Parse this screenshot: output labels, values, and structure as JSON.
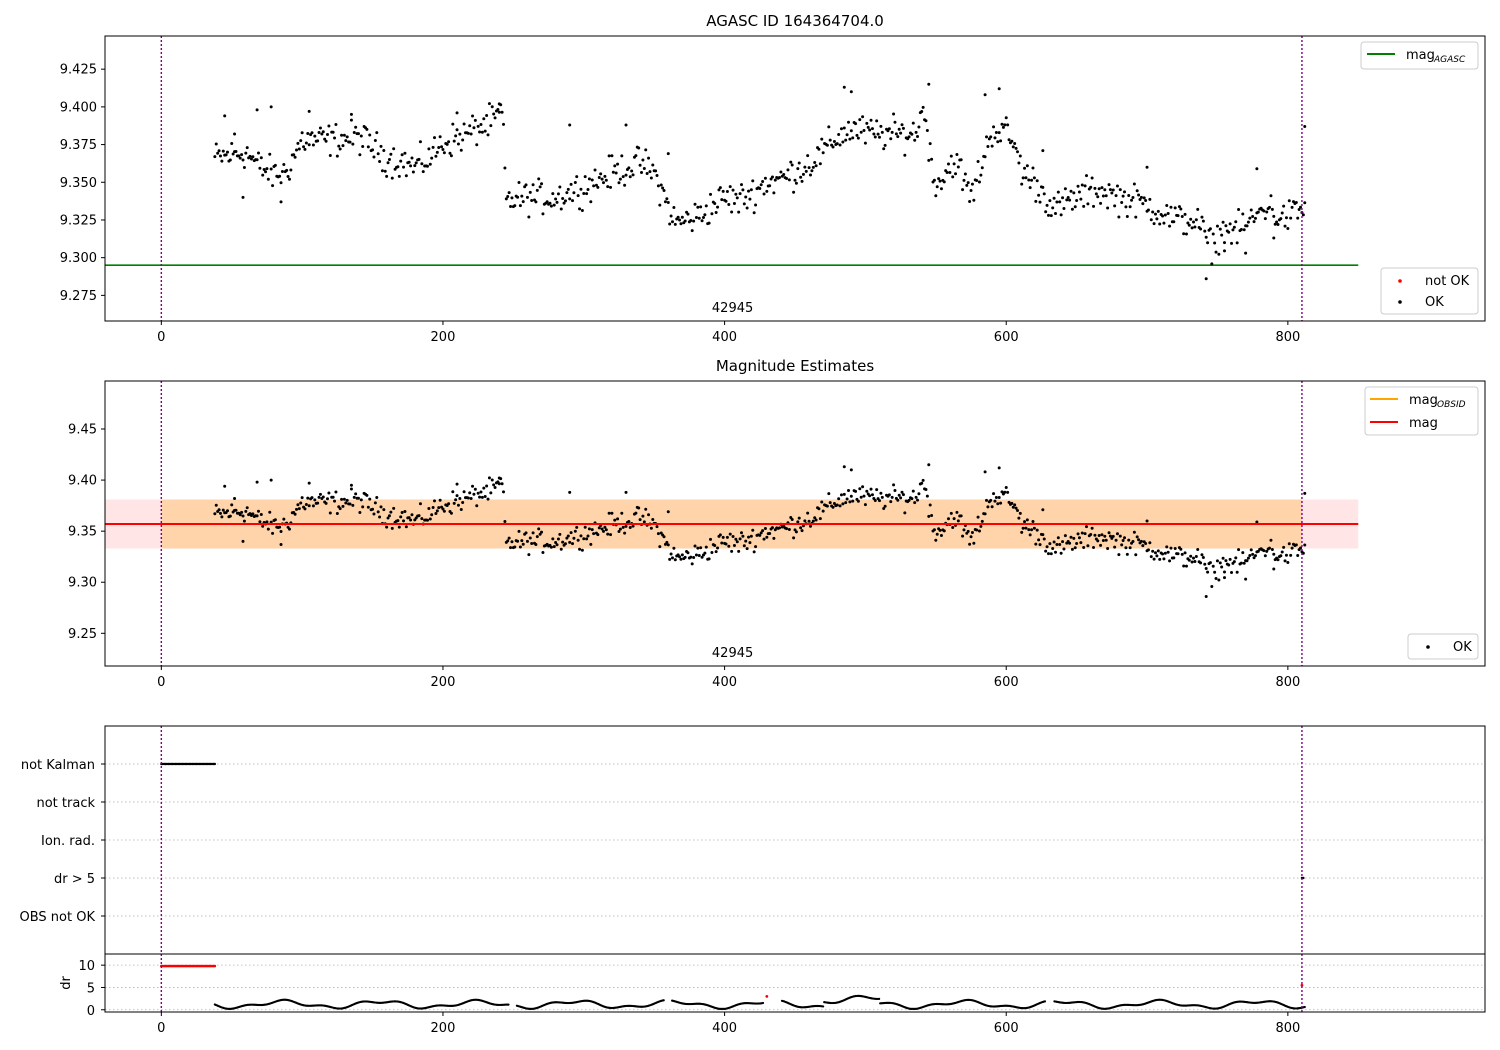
{
  "chart_data": [
    {
      "type": "scatter",
      "title": "AGASC ID 164364704.0",
      "xlim": [
        -40,
        940
      ],
      "ylim": [
        9.258,
        9.447
      ],
      "x_ticks": [
        0,
        200,
        400,
        600,
        800
      ],
      "y_ticks": [
        9.275,
        9.3,
        9.325,
        9.35,
        9.375,
        9.4,
        9.425
      ],
      "y_tick_labels": [
        "9.275",
        "9.300",
        "9.325",
        "9.350",
        "9.375",
        "9.400",
        "9.425"
      ],
      "obsid_label": "42945",
      "obsid_label_x": 400,
      "vlines_x": [
        0,
        810
      ],
      "hline": {
        "name": "mag_AGASC",
        "y": 9.295,
        "x_range": [
          -40,
          850
        ],
        "color": "#008000"
      },
      "legend_top": {
        "label": "mag",
        "subscript": "AGASC"
      },
      "legend_bottom": [
        {
          "label": "not OK",
          "color": "#ff0000"
        },
        {
          "label": "OK",
          "color": "#000000"
        }
      ],
      "series": [
        {
          "name": "OK",
          "x_ranges": [
            [
              38,
              242
            ],
            [
              243,
              812
            ]
          ],
          "anchors": [
            [
              38,
              9.366
            ],
            [
              60,
              9.37
            ],
            [
              70,
              9.36
            ],
            [
              80,
              9.355
            ],
            [
              88,
              9.356
            ],
            [
              100,
              9.378
            ],
            [
              120,
              9.378
            ],
            [
              140,
              9.38
            ],
            [
              150,
              9.374
            ],
            [
              160,
              9.366
            ],
            [
              170,
              9.364
            ],
            [
              180,
              9.36
            ],
            [
              190,
              9.366
            ],
            [
              200,
              9.376
            ],
            [
              215,
              9.381
            ],
            [
              225,
              9.386
            ],
            [
              235,
              9.39
            ],
            [
              242,
              9.397
            ],
            [
              245,
              9.338
            ],
            [
              260,
              9.34
            ],
            [
              280,
              9.34
            ],
            [
              300,
              9.347
            ],
            [
              320,
              9.356
            ],
            [
              340,
              9.363
            ],
            [
              350,
              9.356
            ],
            [
              355,
              9.345
            ],
            [
              365,
              9.323
            ],
            [
              380,
              9.327
            ],
            [
              400,
              9.34
            ],
            [
              410,
              9.338
            ],
            [
              420,
              9.343
            ],
            [
              430,
              9.35
            ],
            [
              440,
              9.352
            ],
            [
              460,
              9.362
            ],
            [
              470,
              9.37
            ],
            [
              480,
              9.38
            ],
            [
              490,
              9.385
            ],
            [
              505,
              9.382
            ],
            [
              520,
              9.382
            ],
            [
              535,
              9.382
            ],
            [
              542,
              9.4
            ],
            [
              548,
              9.352
            ],
            [
              555,
              9.352
            ],
            [
              562,
              9.365
            ],
            [
              568,
              9.356
            ],
            [
              575,
              9.34
            ],
            [
              582,
              9.36
            ],
            [
              590,
              9.385
            ],
            [
              600,
              9.383
            ],
            [
              605,
              9.376
            ],
            [
              612,
              9.356
            ],
            [
              620,
              9.35
            ],
            [
              635,
              9.332
            ],
            [
              650,
              9.34
            ],
            [
              665,
              9.345
            ],
            [
              680,
              9.34
            ],
            [
              700,
              9.335
            ],
            [
              720,
              9.325
            ],
            [
              735,
              9.325
            ],
            [
              745,
              9.308
            ],
            [
              755,
              9.318
            ],
            [
              765,
              9.318
            ],
            [
              775,
              9.325
            ],
            [
              785,
              9.335
            ],
            [
              795,
              9.325
            ],
            [
              810,
              9.332
            ]
          ],
          "noise_amplitude": 0.009,
          "spikes": [
            [
              45,
              9.394
            ],
            [
              52,
              9.382
            ],
            [
              58,
              9.34
            ],
            [
              68,
              9.398
            ],
            [
              78,
              9.4
            ],
            [
              85,
              9.337
            ],
            [
              105,
              9.397
            ],
            [
              135,
              9.395
            ],
            [
              210,
              9.396
            ],
            [
              240,
              9.402
            ],
            [
              290,
              9.388
            ],
            [
              330,
              9.388
            ],
            [
              360,
              9.369
            ],
            [
              490,
              9.41
            ],
            [
              485,
              9.413
            ],
            [
              545,
              9.415
            ],
            [
              585,
              9.408
            ],
            [
              595,
              9.412
            ],
            [
              626,
              9.371
            ],
            [
              700,
              9.36
            ],
            [
              742,
              9.286
            ],
            [
              755,
              9.31
            ],
            [
              770,
              9.303
            ],
            [
              778,
              9.359
            ],
            [
              790,
              9.313
            ],
            [
              812,
              9.387
            ]
          ]
        }
      ]
    },
    {
      "type": "scatter",
      "title": "Magnitude Estimates",
      "xlim": [
        -40,
        940
      ],
      "ylim": [
        9.218,
        9.497
      ],
      "x_ticks": [
        0,
        200,
        400,
        600,
        800
      ],
      "y_ticks": [
        9.25,
        9.3,
        9.35,
        9.4,
        9.45
      ],
      "y_tick_labels": [
        "9.25",
        "9.30",
        "9.35",
        "9.40",
        "9.45"
      ],
      "obsid_label": "42945",
      "obsid_label_x": 400,
      "vlines_x": [
        0,
        810
      ],
      "mag_line": {
        "name": "mag",
        "y": 9.357,
        "x_range": [
          -40,
          850
        ],
        "color": "#ff0000"
      },
      "mag_band": {
        "low": 9.333,
        "high": 9.381,
        "x_range": [
          -40,
          850
        ],
        "color": "#ff0000"
      },
      "mag_obsid_band": {
        "low": 9.333,
        "high": 9.381,
        "x_range": [
          0,
          810
        ],
        "color": "#ffa500"
      },
      "legend_top": [
        {
          "label": "mag",
          "subscript": "OBSID",
          "color": "#ffa500"
        },
        {
          "label": "mag",
          "subscript": "",
          "color": "#ff0000"
        }
      ],
      "legend_bottom": [
        {
          "label": "OK",
          "color": "#000000"
        }
      ],
      "series_ref": "same points as panel 1"
    },
    {
      "type": "scatter",
      "title": "",
      "category_labels": [
        "not Kalman",
        "not track",
        "Ion. rad.",
        "dr > 5",
        "OBS not OK"
      ],
      "flag_segments": [
        {
          "category": "not Kalman",
          "x_range": [
            0,
            38
          ],
          "color": "#000000"
        },
        {
          "category": "dr > 5",
          "x_range": [
            810,
            811
          ],
          "color": "#000000"
        }
      ],
      "vlines_x": [
        0,
        810
      ]
    },
    {
      "type": "line",
      "ylabel": "dr",
      "xlim": [
        -40,
        940
      ],
      "ylim": [
        -0.5,
        12.5
      ],
      "x_ticks": [
        0,
        200,
        400,
        600,
        800
      ],
      "y_ticks": [
        0,
        5,
        10
      ],
      "y_tick_labels": [
        "0",
        "5",
        "10"
      ],
      "x_tick_labels": [
        "0",
        "200",
        "400",
        "600",
        "800"
      ],
      "vlines_x": [
        0,
        810
      ],
      "red_segment": {
        "x_range": [
          0,
          38
        ],
        "y": 9.8,
        "color": "#ff0000"
      },
      "red_points": [
        [
          430,
          3.0
        ],
        [
          810,
          5.5
        ]
      ],
      "series": [
        {
          "name": "dr",
          "x_range": [
            38,
            812
          ],
          "base": 1.2,
          "gaps": [
            [
              247,
              252
            ],
            [
              357,
              362
            ],
            [
              428,
              440
            ],
            [
              628,
              634
            ]
          ]
        }
      ]
    }
  ]
}
